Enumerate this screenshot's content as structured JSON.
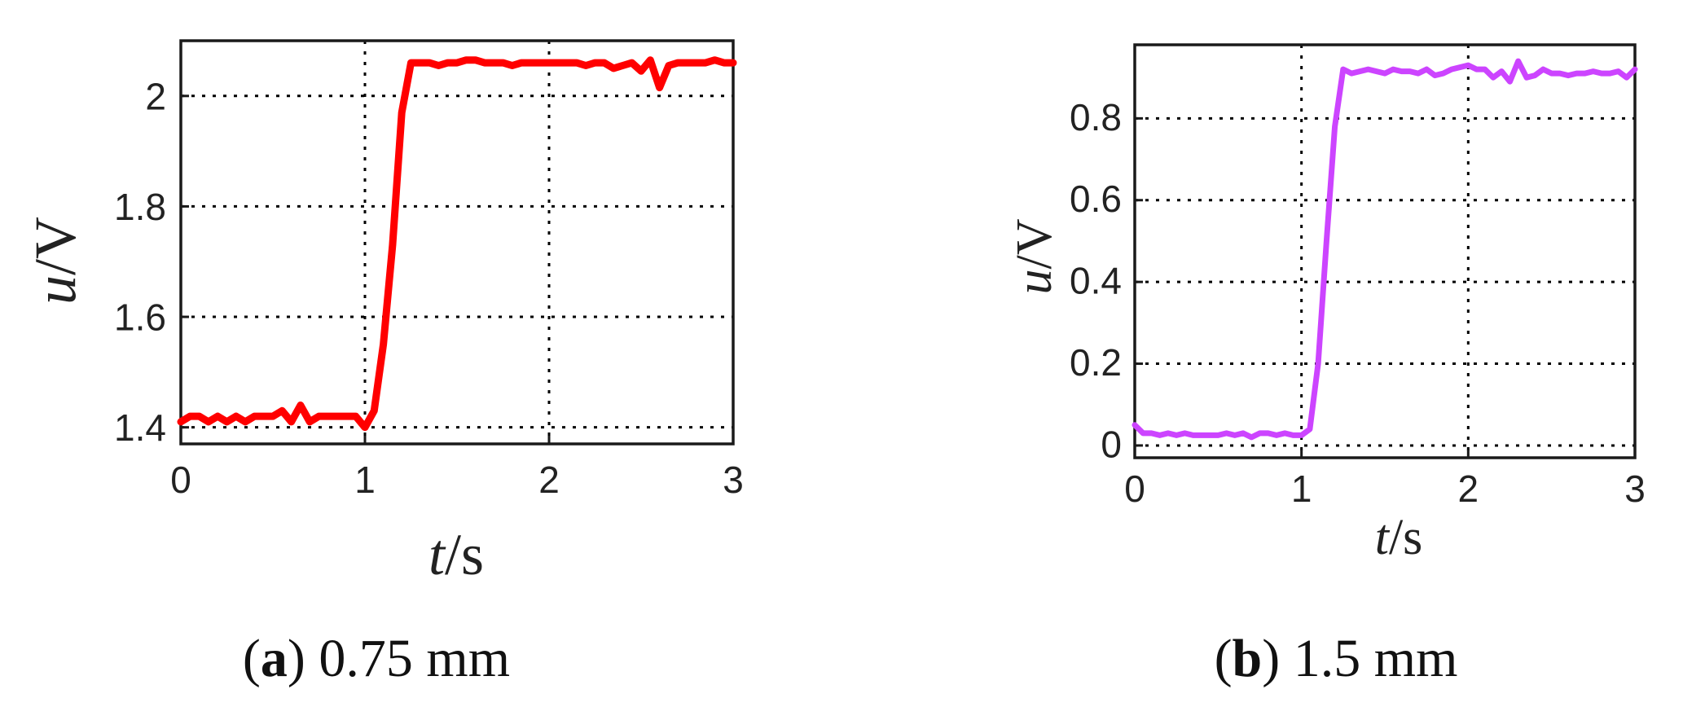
{
  "chart_data": [
    {
      "type": "line",
      "panel": "a",
      "caption_letter": "a",
      "caption_text": "0.75 mm",
      "xlabel_var": "t",
      "xlabel_unit": "/s",
      "ylabel_var": "u",
      "ylabel_unit": "/V",
      "xlim": [
        0,
        3
      ],
      "ylim": [
        1.37,
        2.1
      ],
      "xticks": [
        0,
        1,
        2,
        3
      ],
      "xtick_labels": [
        "0",
        "1",
        "2",
        "3"
      ],
      "yticks": [
        1.4,
        1.6,
        1.8,
        2.0
      ],
      "ytick_labels": [
        "1.4",
        "1.6",
        "1.8",
        "2"
      ],
      "grid": true,
      "series": [
        {
          "color": "#ff0000",
          "x": [
            0,
            0.05,
            0.1,
            0.15,
            0.2,
            0.25,
            0.3,
            0.35,
            0.4,
            0.45,
            0.5,
            0.55,
            0.6,
            0.65,
            0.7,
            0.75,
            0.8,
            0.85,
            0.9,
            0.95,
            1.0,
            1.05,
            1.1,
            1.15,
            1.2,
            1.25,
            1.3,
            1.35,
            1.4,
            1.45,
            1.5,
            1.55,
            1.6,
            1.65,
            1.7,
            1.75,
            1.8,
            1.85,
            1.9,
            1.95,
            2.0,
            2.05,
            2.1,
            2.15,
            2.2,
            2.25,
            2.3,
            2.35,
            2.4,
            2.45,
            2.5,
            2.55,
            2.6,
            2.65,
            2.7,
            2.75,
            2.8,
            2.85,
            2.9,
            2.95,
            3.0
          ],
          "y": [
            1.41,
            1.42,
            1.42,
            1.41,
            1.42,
            1.41,
            1.42,
            1.41,
            1.42,
            1.42,
            1.42,
            1.43,
            1.41,
            1.44,
            1.41,
            1.42,
            1.42,
            1.42,
            1.42,
            1.42,
            1.4,
            1.43,
            1.55,
            1.73,
            1.97,
            2.06,
            2.06,
            2.06,
            2.055,
            2.06,
            2.06,
            2.065,
            2.065,
            2.06,
            2.06,
            2.06,
            2.055,
            2.06,
            2.06,
            2.06,
            2.06,
            2.06,
            2.06,
            2.06,
            2.055,
            2.06,
            2.06,
            2.05,
            2.055,
            2.06,
            2.045,
            2.065,
            2.015,
            2.055,
            2.06,
            2.06,
            2.06,
            2.06,
            2.065,
            2.06,
            2.06
          ]
        }
      ]
    },
    {
      "type": "line",
      "panel": "b",
      "caption_letter": "b",
      "caption_text": "1.5 mm",
      "xlabel_var": "t",
      "xlabel_unit": "/s",
      "ylabel_var": "u",
      "ylabel_unit": "/V",
      "xlim": [
        0,
        3
      ],
      "ylim": [
        -0.03,
        0.98
      ],
      "xticks": [
        0,
        1,
        2,
        3
      ],
      "xtick_labels": [
        "0",
        "1",
        "2",
        "3"
      ],
      "yticks": [
        0,
        0.2,
        0.4,
        0.6,
        0.8
      ],
      "ytick_labels": [
        "0",
        "0.2",
        "0.4",
        "0.6",
        "0.8"
      ],
      "grid": true,
      "series": [
        {
          "color": "#cc44ff",
          "x": [
            0,
            0.05,
            0.1,
            0.15,
            0.2,
            0.25,
            0.3,
            0.35,
            0.4,
            0.45,
            0.5,
            0.55,
            0.6,
            0.65,
            0.7,
            0.75,
            0.8,
            0.85,
            0.9,
            0.95,
            1.0,
            1.05,
            1.1,
            1.15,
            1.2,
            1.25,
            1.3,
            1.35,
            1.4,
            1.45,
            1.5,
            1.55,
            1.6,
            1.65,
            1.7,
            1.75,
            1.8,
            1.85,
            1.9,
            1.95,
            2.0,
            2.05,
            2.1,
            2.15,
            2.2,
            2.25,
            2.3,
            2.35,
            2.4,
            2.45,
            2.5,
            2.55,
            2.6,
            2.65,
            2.7,
            2.75,
            2.8,
            2.85,
            2.9,
            2.95,
            3.0
          ],
          "y": [
            0.05,
            0.03,
            0.03,
            0.025,
            0.03,
            0.025,
            0.03,
            0.025,
            0.025,
            0.025,
            0.025,
            0.03,
            0.025,
            0.03,
            0.02,
            0.03,
            0.03,
            0.025,
            0.03,
            0.025,
            0.025,
            0.04,
            0.2,
            0.5,
            0.78,
            0.92,
            0.91,
            0.915,
            0.92,
            0.915,
            0.91,
            0.92,
            0.915,
            0.915,
            0.91,
            0.92,
            0.905,
            0.91,
            0.92,
            0.925,
            0.93,
            0.92,
            0.92,
            0.9,
            0.915,
            0.89,
            0.94,
            0.9,
            0.905,
            0.92,
            0.91,
            0.91,
            0.905,
            0.91,
            0.91,
            0.915,
            0.91,
            0.91,
            0.915,
            0.9,
            0.92
          ]
        }
      ]
    }
  ]
}
